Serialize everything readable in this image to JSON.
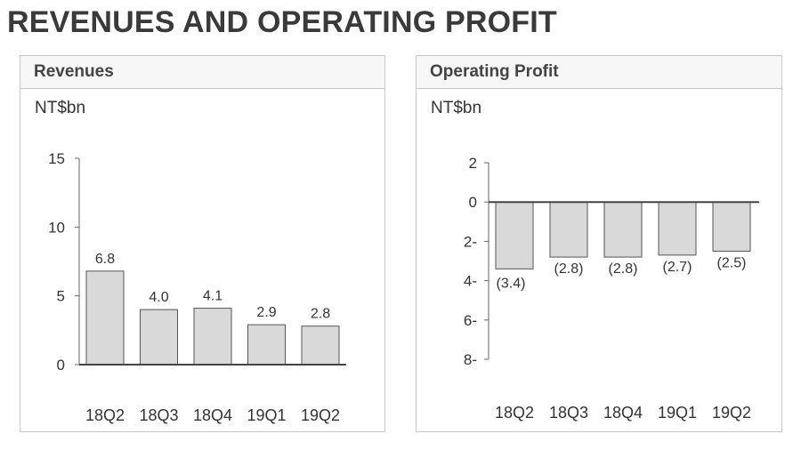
{
  "page": {
    "title": "REVENUES AND OPERATING PROFIT"
  },
  "chart_data": [
    {
      "type": "bar",
      "title": "Revenues",
      "unit": "NT$bn",
      "categories": [
        "18Q2",
        "18Q3",
        "18Q4",
        "19Q1",
        "19Q2"
      ],
      "values": [
        6.8,
        4.0,
        4.1,
        2.9,
        2.8
      ],
      "value_labels": [
        "6.8",
        "4.0",
        "4.1",
        "2.9",
        "2.8"
      ],
      "ylim": [
        0,
        15
      ],
      "yticks": [
        0,
        5,
        10,
        15
      ],
      "ytick_labels": [
        "0",
        "5",
        "10",
        "15"
      ],
      "bar_color": "#d9d9d9",
      "grid": false
    },
    {
      "type": "bar",
      "title": "Operating Profit",
      "unit": "NT$bn",
      "categories": [
        "18Q2",
        "18Q3",
        "18Q4",
        "19Q1",
        "19Q2"
      ],
      "values": [
        -3.4,
        -2.8,
        -2.8,
        -2.7,
        -2.5
      ],
      "value_labels": [
        "(3.4)",
        "(2.8)",
        "(2.8)",
        "(2.7)",
        "(2.5)"
      ],
      "ylim": [
        -8,
        2
      ],
      "yticks": [
        2,
        0,
        -2,
        -4,
        -6,
        -8
      ],
      "ytick_labels": [
        "2",
        "0",
        "2-",
        "4-",
        "6-",
        "8-"
      ],
      "bar_color": "#d9d9d9",
      "grid": false
    }
  ]
}
